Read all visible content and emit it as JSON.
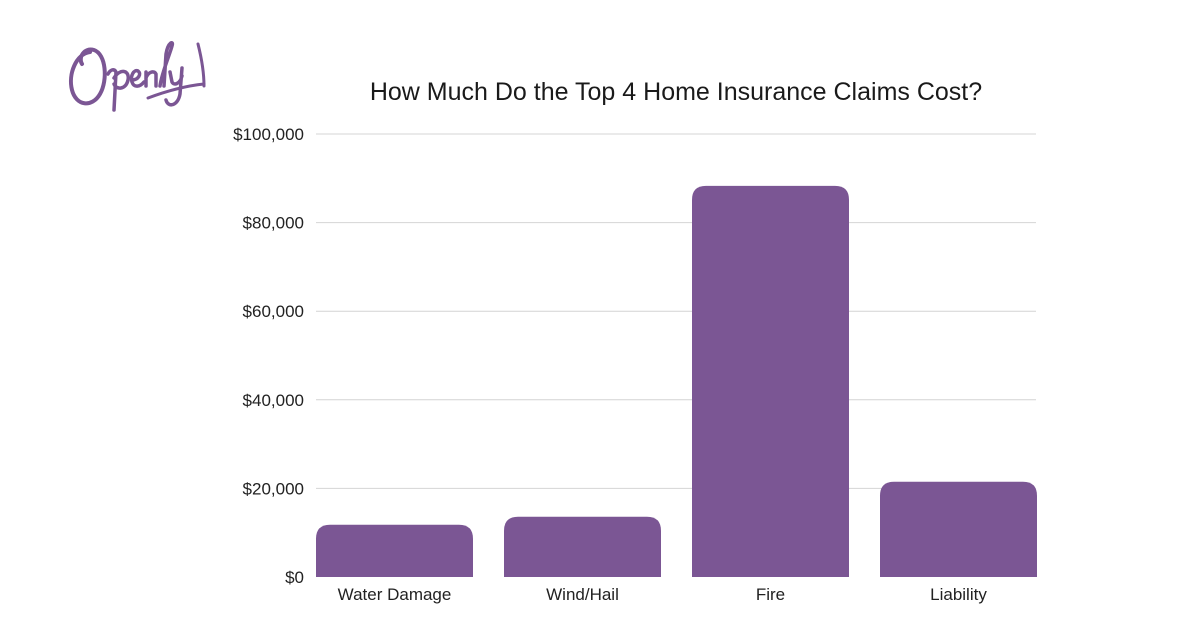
{
  "brand": {
    "logo_text": "Openly",
    "logo_color": "#7b5694"
  },
  "chart_data": {
    "type": "bar",
    "title": "How Much Do the Top 4 Home Insurance Claims Cost?",
    "categories": [
      "Water Damage",
      "Wind/Hail",
      "Fire",
      "Liability"
    ],
    "values": [
      11800,
      13600,
      88300,
      21500
    ],
    "ylim": [
      0,
      100000
    ],
    "yticks": [
      0,
      20000,
      40000,
      60000,
      80000,
      100000
    ],
    "ytick_labels": [
      "$0",
      "$20,000",
      "$40,000",
      "$60,000",
      "$80,000",
      "$100,000"
    ],
    "xlabel": "",
    "ylabel": "",
    "grid": true,
    "bar_color": "#7b5694",
    "grid_color": "#d4d4d4"
  }
}
